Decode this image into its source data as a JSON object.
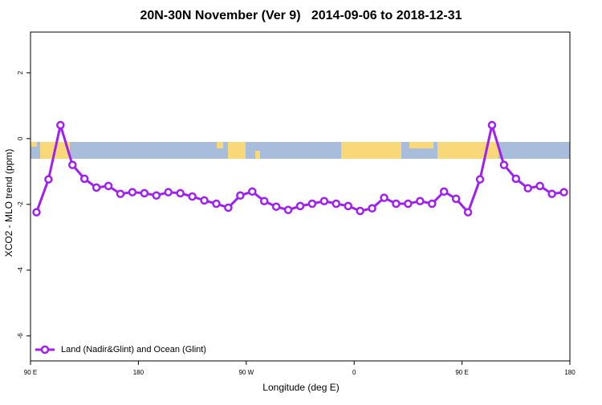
{
  "chart_data": {
    "type": "line",
    "title": "20N-30N November (Ver 9)   2014-09-06 to 2018-12-31",
    "x_label": "Longitude (deg E)",
    "y_label": "XCO2 - MLO trend (ppm)",
    "x": [
      95,
      105,
      115,
      125,
      135,
      145,
      155,
      165,
      175,
      185,
      195,
      205,
      215,
      225,
      235,
      245,
      255,
      265,
      275,
      285,
      295,
      305,
      315,
      325,
      335,
      345,
      355,
      365,
      375,
      385,
      395,
      405,
      415,
      425,
      435,
      445,
      455,
      465,
      475,
      485,
      495,
      505,
      515,
      525,
      535
    ],
    "series": [
      {
        "name": "Land (Nadir&Glint) and Ocean (Glint)",
        "color": "#a020f0",
        "values": [
          -2.24,
          -1.24,
          0.41,
          -0.8,
          -1.22,
          -1.49,
          -1.44,
          -1.68,
          -1.63,
          -1.66,
          -1.73,
          -1.63,
          -1.66,
          -1.76,
          -1.88,
          -1.98,
          -2.1,
          -1.73,
          -1.61,
          -1.9,
          -2.07,
          -2.17,
          -2.05,
          -1.98,
          -1.9,
          -1.98,
          -2.05,
          -2.2,
          -2.12,
          -1.8,
          -1.98,
          -1.98,
          -1.9,
          -1.98,
          -1.61,
          -1.83,
          -2.24,
          -1.24,
          0.41,
          -0.8,
          -1.22,
          -1.51,
          -1.44,
          -1.68,
          -1.63
        ]
      }
    ],
    "xlim": [
      90,
      540
    ],
    "xticks": [
      {
        "value": 90,
        "label": "90 E"
      },
      {
        "value": 180,
        "label": "180"
      },
      {
        "value": 270,
        "label": "90 W"
      },
      {
        "value": 360,
        "label": "0"
      },
      {
        "value": 450,
        "label": "90 E"
      },
      {
        "value": 540,
        "label": "180"
      }
    ],
    "ylim": [
      -6.76,
      3.24
    ],
    "yticks": [
      -6,
      -4,
      -2,
      0,
      2
    ],
    "legend": "bottom-left"
  }
}
